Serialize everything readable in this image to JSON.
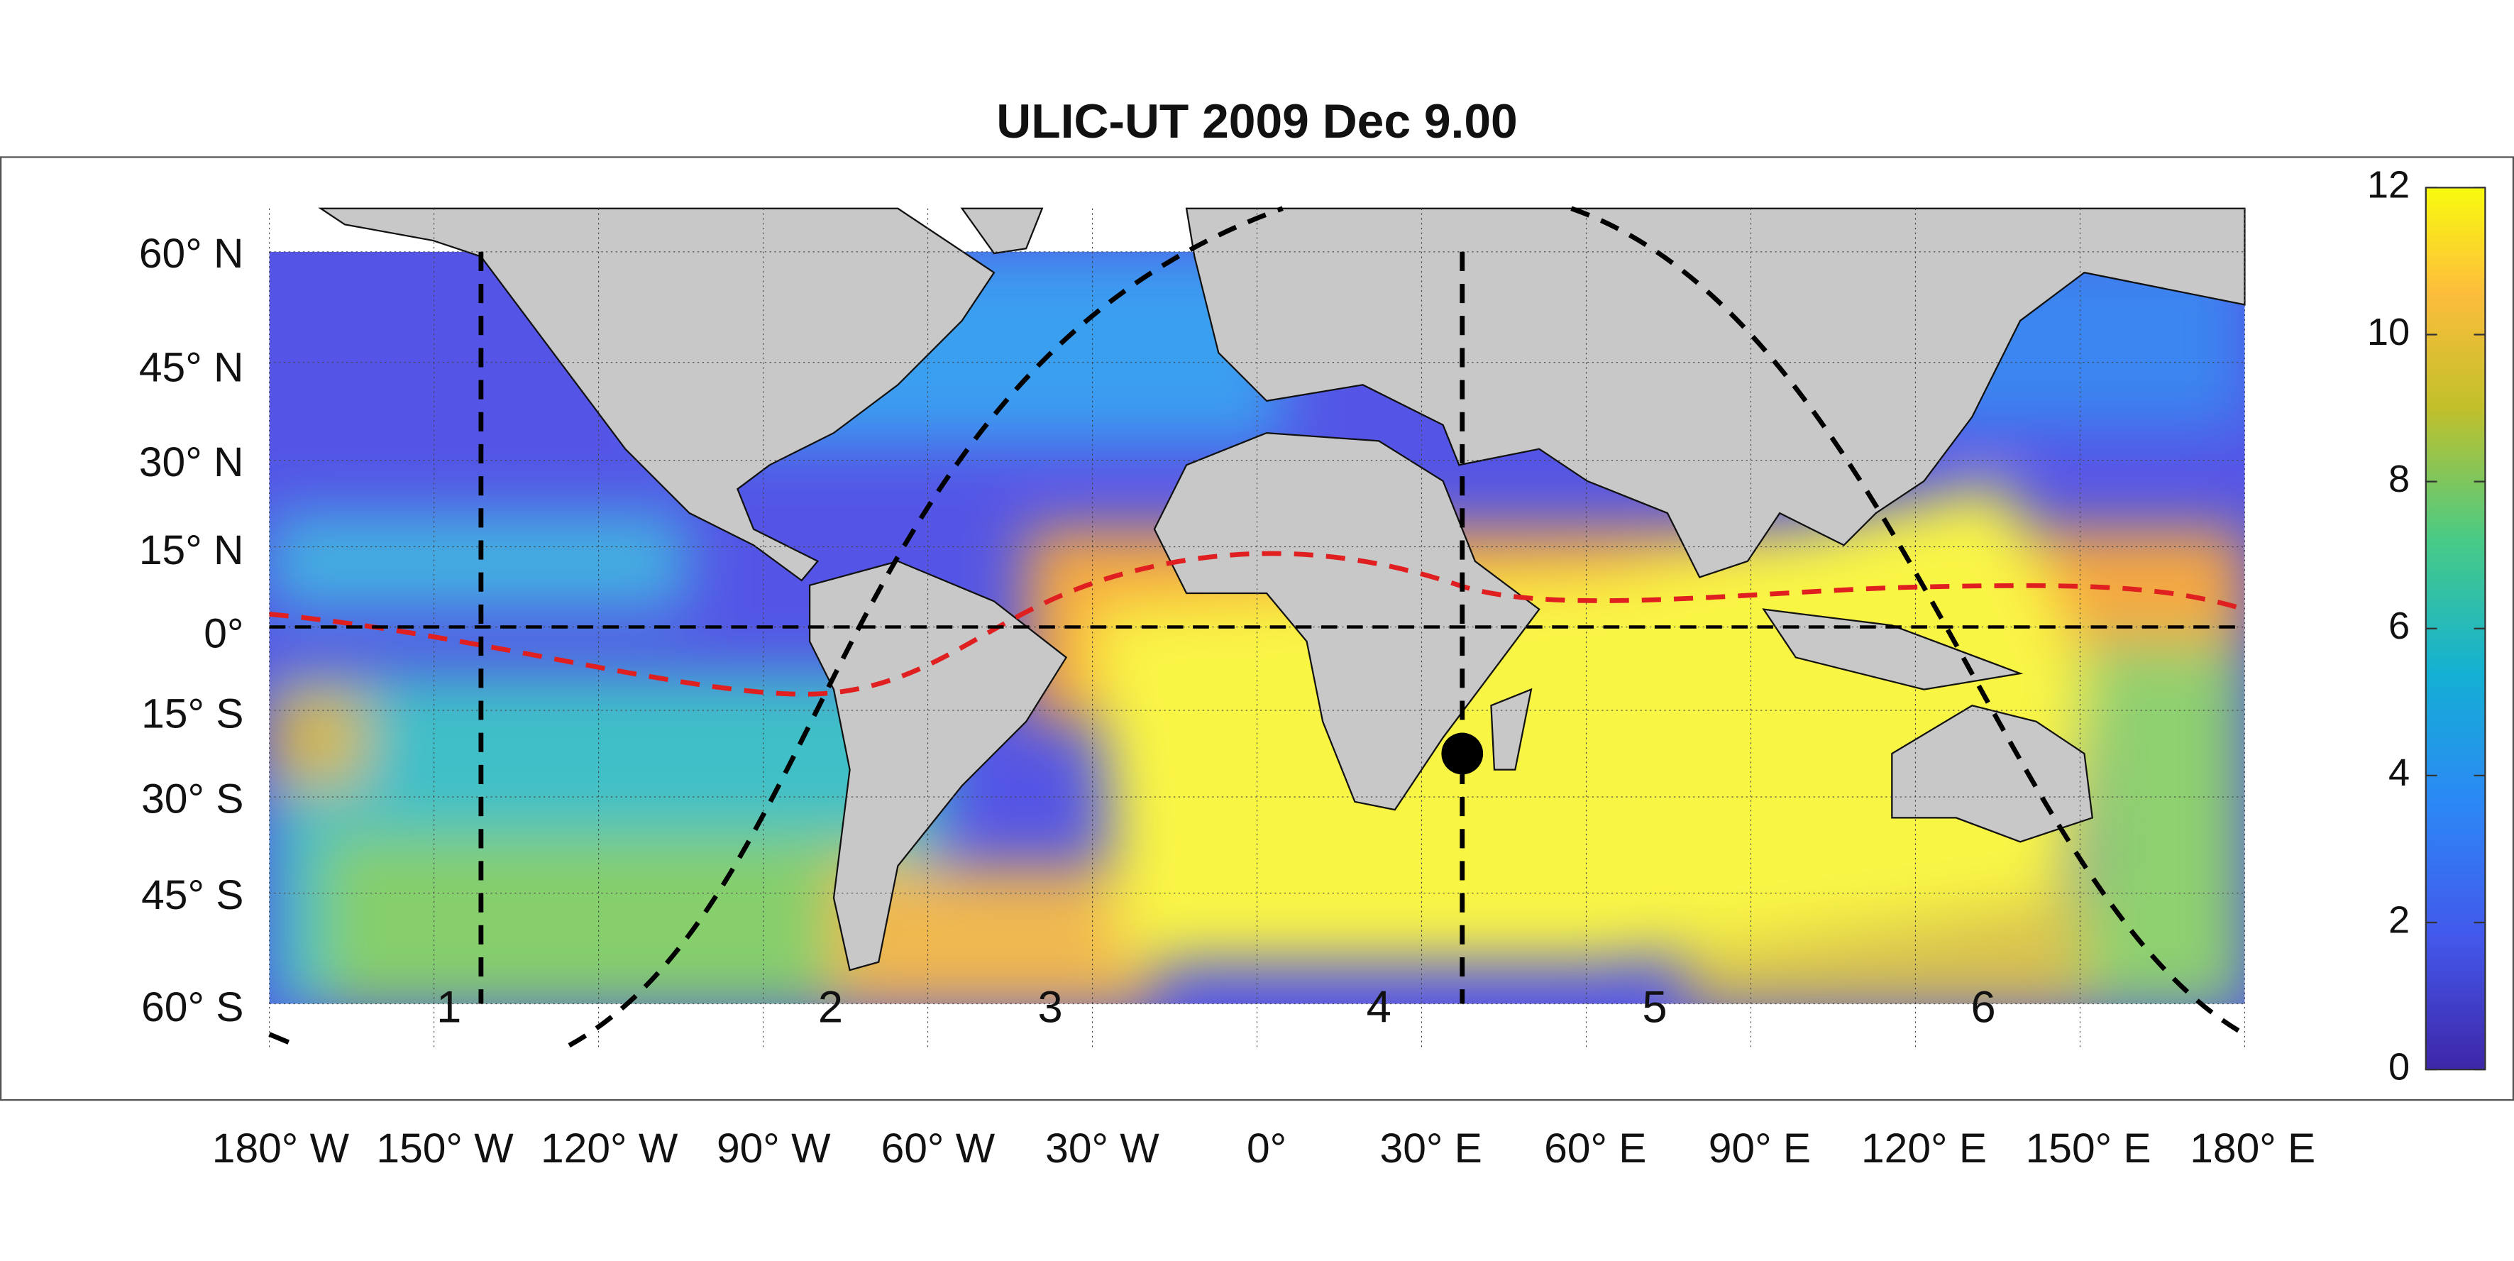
{
  "map": {
    "title": "ULIC-UT 2009 Dec  9.00",
    "lat_labels": [
      "60° N",
      "45° N",
      "30° N",
      "15° N",
      "0°",
      "15° S",
      "30° S",
      "45° S",
      "60° S"
    ],
    "lon_labels": [
      "180° W",
      "150° W",
      "120° W",
      "90° W",
      "60° W",
      "30° W",
      "0°",
      "30° E",
      "60° E",
      "90° E",
      "120° E",
      "150° E",
      "180° E"
    ],
    "regions": [
      "1",
      "2",
      "3",
      "4",
      "5",
      "6"
    ],
    "colorbar": {
      "lim": [
        0,
        12
      ],
      "ticks": [
        0,
        2,
        4,
        6,
        8,
        10,
        12
      ]
    }
  }
}
